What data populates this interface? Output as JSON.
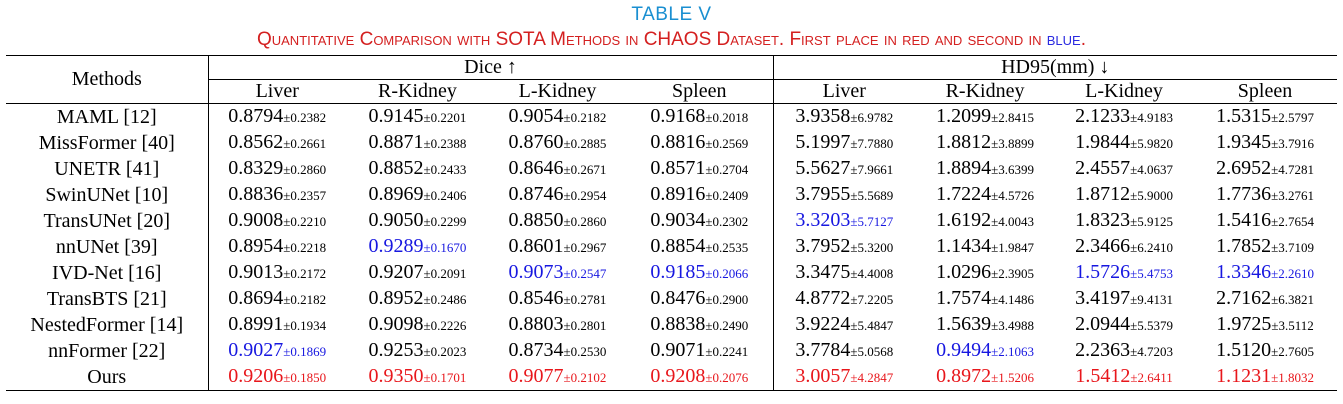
{
  "caption": {
    "label": "TABLE V",
    "title_main": "Quantitative Comparison with SOTA Methods in CHAOS Dataset. First place in red and second in ",
    "title_blue": "blue",
    "title_end": "."
  },
  "headers": {
    "methods": "Methods",
    "group1": "Dice ↑",
    "group2": "HD95(mm) ↓",
    "organs": [
      "Liver",
      "R-Kidney",
      "L-Kidney",
      "Spleen",
      "Liver",
      "R-Kidney",
      "L-Kidney",
      "Spleen"
    ]
  },
  "colors": {
    "first": "#e8161b",
    "second": "#1717e0"
  },
  "rows": [
    {
      "method": "MAML [12]",
      "cells": [
        {
          "mean": "0.8794",
          "std": "±0.2382",
          "rank": ""
        },
        {
          "mean": "0.9145",
          "std": "±0.2201",
          "rank": ""
        },
        {
          "mean": "0.9054",
          "std": "±0.2182",
          "rank": ""
        },
        {
          "mean": "0.9168",
          "std": "±0.2018",
          "rank": ""
        },
        {
          "mean": "3.9358",
          "std": "±6.9782",
          "rank": ""
        },
        {
          "mean": "1.2099",
          "std": "±2.8415",
          "rank": ""
        },
        {
          "mean": "2.1233",
          "std": "±4.9183",
          "rank": ""
        },
        {
          "mean": "1.5315",
          "std": "±2.5797",
          "rank": ""
        }
      ]
    },
    {
      "method": "MissFormer [40]",
      "cells": [
        {
          "mean": "0.8562",
          "std": "±0.2661",
          "rank": ""
        },
        {
          "mean": "0.8871",
          "std": "±0.2388",
          "rank": ""
        },
        {
          "mean": "0.8760",
          "std": "±0.2885",
          "rank": ""
        },
        {
          "mean": "0.8816",
          "std": "±0.2569",
          "rank": ""
        },
        {
          "mean": "5.1997",
          "std": "±7.7880",
          "rank": ""
        },
        {
          "mean": "1.8812",
          "std": "±3.8899",
          "rank": ""
        },
        {
          "mean": "1.9844",
          "std": "±5.9820",
          "rank": ""
        },
        {
          "mean": "1.9345",
          "std": "±3.7916",
          "rank": ""
        }
      ]
    },
    {
      "method": "UNETR [41]",
      "cells": [
        {
          "mean": "0.8329",
          "std": "±0.2860",
          "rank": ""
        },
        {
          "mean": "0.8852",
          "std": "±0.2433",
          "rank": ""
        },
        {
          "mean": "0.8646",
          "std": "±0.2671",
          "rank": ""
        },
        {
          "mean": "0.8571",
          "std": "±0.2704",
          "rank": ""
        },
        {
          "mean": "5.5627",
          "std": "±7.9661",
          "rank": ""
        },
        {
          "mean": "1.8894",
          "std": "±3.6399",
          "rank": ""
        },
        {
          "mean": "2.4557",
          "std": "±4.0637",
          "rank": ""
        },
        {
          "mean": "2.6952",
          "std": "±4.7281",
          "rank": ""
        }
      ]
    },
    {
      "method": "SwinUNet [10]",
      "cells": [
        {
          "mean": "0.8836",
          "std": "±0.2357",
          "rank": ""
        },
        {
          "mean": "0.8969",
          "std": "±0.2406",
          "rank": ""
        },
        {
          "mean": "0.8746",
          "std": "±0.2954",
          "rank": ""
        },
        {
          "mean": "0.8916",
          "std": "±0.2409",
          "rank": ""
        },
        {
          "mean": "3.7955",
          "std": "±5.5689",
          "rank": ""
        },
        {
          "mean": "1.7224",
          "std": "±4.5726",
          "rank": ""
        },
        {
          "mean": "1.8712",
          "std": "±5.9000",
          "rank": ""
        },
        {
          "mean": "1.7736",
          "std": "±3.2761",
          "rank": ""
        }
      ]
    },
    {
      "method": "TransUNet [20]",
      "cells": [
        {
          "mean": "0.9008",
          "std": "±0.2210",
          "rank": ""
        },
        {
          "mean": "0.9050",
          "std": "±0.2299",
          "rank": ""
        },
        {
          "mean": "0.8850",
          "std": "±0.2860",
          "rank": ""
        },
        {
          "mean": "0.9034",
          "std": "±0.2302",
          "rank": ""
        },
        {
          "mean": "3.3203",
          "std": "±5.7127",
          "rank": "second"
        },
        {
          "mean": "1.6192",
          "std": "±4.0043",
          "rank": ""
        },
        {
          "mean": "1.8323",
          "std": "±5.9125",
          "rank": ""
        },
        {
          "mean": "1.5416",
          "std": "±2.7654",
          "rank": ""
        }
      ]
    },
    {
      "method": "nnUNet [39]",
      "cells": [
        {
          "mean": "0.8954",
          "std": "±0.2218",
          "rank": ""
        },
        {
          "mean": "0.9289",
          "std": "±0.1670",
          "rank": "second"
        },
        {
          "mean": "0.8601",
          "std": "±0.2967",
          "rank": ""
        },
        {
          "mean": "0.8854",
          "std": "±0.2535",
          "rank": ""
        },
        {
          "mean": "3.7952",
          "std": "±5.3200",
          "rank": ""
        },
        {
          "mean": "1.1434",
          "std": "±1.9847",
          "rank": ""
        },
        {
          "mean": "2.3466",
          "std": "±6.2410",
          "rank": ""
        },
        {
          "mean": "1.7852",
          "std": "±3.7109",
          "rank": ""
        }
      ]
    },
    {
      "method": "IVD-Net [16]",
      "cells": [
        {
          "mean": "0.9013",
          "std": "±0.2172",
          "rank": ""
        },
        {
          "mean": "0.9207",
          "std": "±0.2091",
          "rank": ""
        },
        {
          "mean": "0.9073",
          "std": "±0.2547",
          "rank": "second"
        },
        {
          "mean": "0.9185",
          "std": "±0.2066",
          "rank": "second"
        },
        {
          "mean": "3.3475",
          "std": "±4.4008",
          "rank": ""
        },
        {
          "mean": "1.0296",
          "std": "±2.3905",
          "rank": ""
        },
        {
          "mean": "1.5726",
          "std": "±5.4753",
          "rank": "second"
        },
        {
          "mean": "1.3346",
          "std": "±2.2610",
          "rank": "second"
        }
      ]
    },
    {
      "method": "TransBTS [21]",
      "cells": [
        {
          "mean": "0.8694",
          "std": "±0.2182",
          "rank": ""
        },
        {
          "mean": "0.8952",
          "std": "±0.2486",
          "rank": ""
        },
        {
          "mean": "0.8546",
          "std": "±0.2781",
          "rank": ""
        },
        {
          "mean": "0.8476",
          "std": "±0.2900",
          "rank": ""
        },
        {
          "mean": "4.8772",
          "std": "±7.2205",
          "rank": ""
        },
        {
          "mean": "1.7574",
          "std": "±4.1486",
          "rank": ""
        },
        {
          "mean": "3.4197",
          "std": "±9.4131",
          "rank": ""
        },
        {
          "mean": "2.7162",
          "std": "±6.3821",
          "rank": ""
        }
      ]
    },
    {
      "method": "NestedFormer [14]",
      "cells": [
        {
          "mean": "0.8991",
          "std": "±0.1934",
          "rank": ""
        },
        {
          "mean": "0.9098",
          "std": "±0.2226",
          "rank": ""
        },
        {
          "mean": "0.8803",
          "std": "±0.2801",
          "rank": ""
        },
        {
          "mean": "0.8838",
          "std": "±0.2490",
          "rank": ""
        },
        {
          "mean": "3.9224",
          "std": "±5.4847",
          "rank": ""
        },
        {
          "mean": "1.5639",
          "std": "±3.4988",
          "rank": ""
        },
        {
          "mean": "2.0944",
          "std": "±5.5379",
          "rank": ""
        },
        {
          "mean": "1.9725",
          "std": "±3.5112",
          "rank": ""
        }
      ]
    },
    {
      "method": "nnFormer [22]",
      "cells": [
        {
          "mean": "0.9027",
          "std": "±0.1869",
          "rank": "second"
        },
        {
          "mean": "0.9253",
          "std": "±0.2023",
          "rank": ""
        },
        {
          "mean": "0.8734",
          "std": "±0.2530",
          "rank": ""
        },
        {
          "mean": "0.9071",
          "std": "±0.2241",
          "rank": ""
        },
        {
          "mean": "3.7784",
          "std": "±5.0568",
          "rank": ""
        },
        {
          "mean": "0.9494",
          "std": "±2.1063",
          "rank": "second"
        },
        {
          "mean": "2.2363",
          "std": "±4.7203",
          "rank": ""
        },
        {
          "mean": "1.5120",
          "std": "±2.7605",
          "rank": ""
        }
      ]
    },
    {
      "method": "Ours",
      "cells": [
        {
          "mean": "0.9206",
          "std": "±0.1850",
          "rank": "first"
        },
        {
          "mean": "0.9350",
          "std": "±0.1701",
          "rank": "first"
        },
        {
          "mean": "0.9077",
          "std": "±0.2102",
          "rank": "first"
        },
        {
          "mean": "0.9208",
          "std": "±0.2076",
          "rank": "first"
        },
        {
          "mean": "3.0057",
          "std": "±4.2847",
          "rank": "first"
        },
        {
          "mean": "0.8972",
          "std": "±1.5206",
          "rank": "first"
        },
        {
          "mean": "1.5412",
          "std": "±2.6411",
          "rank": "first"
        },
        {
          "mean": "1.1231",
          "std": "±1.8032",
          "rank": "first"
        }
      ]
    }
  ]
}
